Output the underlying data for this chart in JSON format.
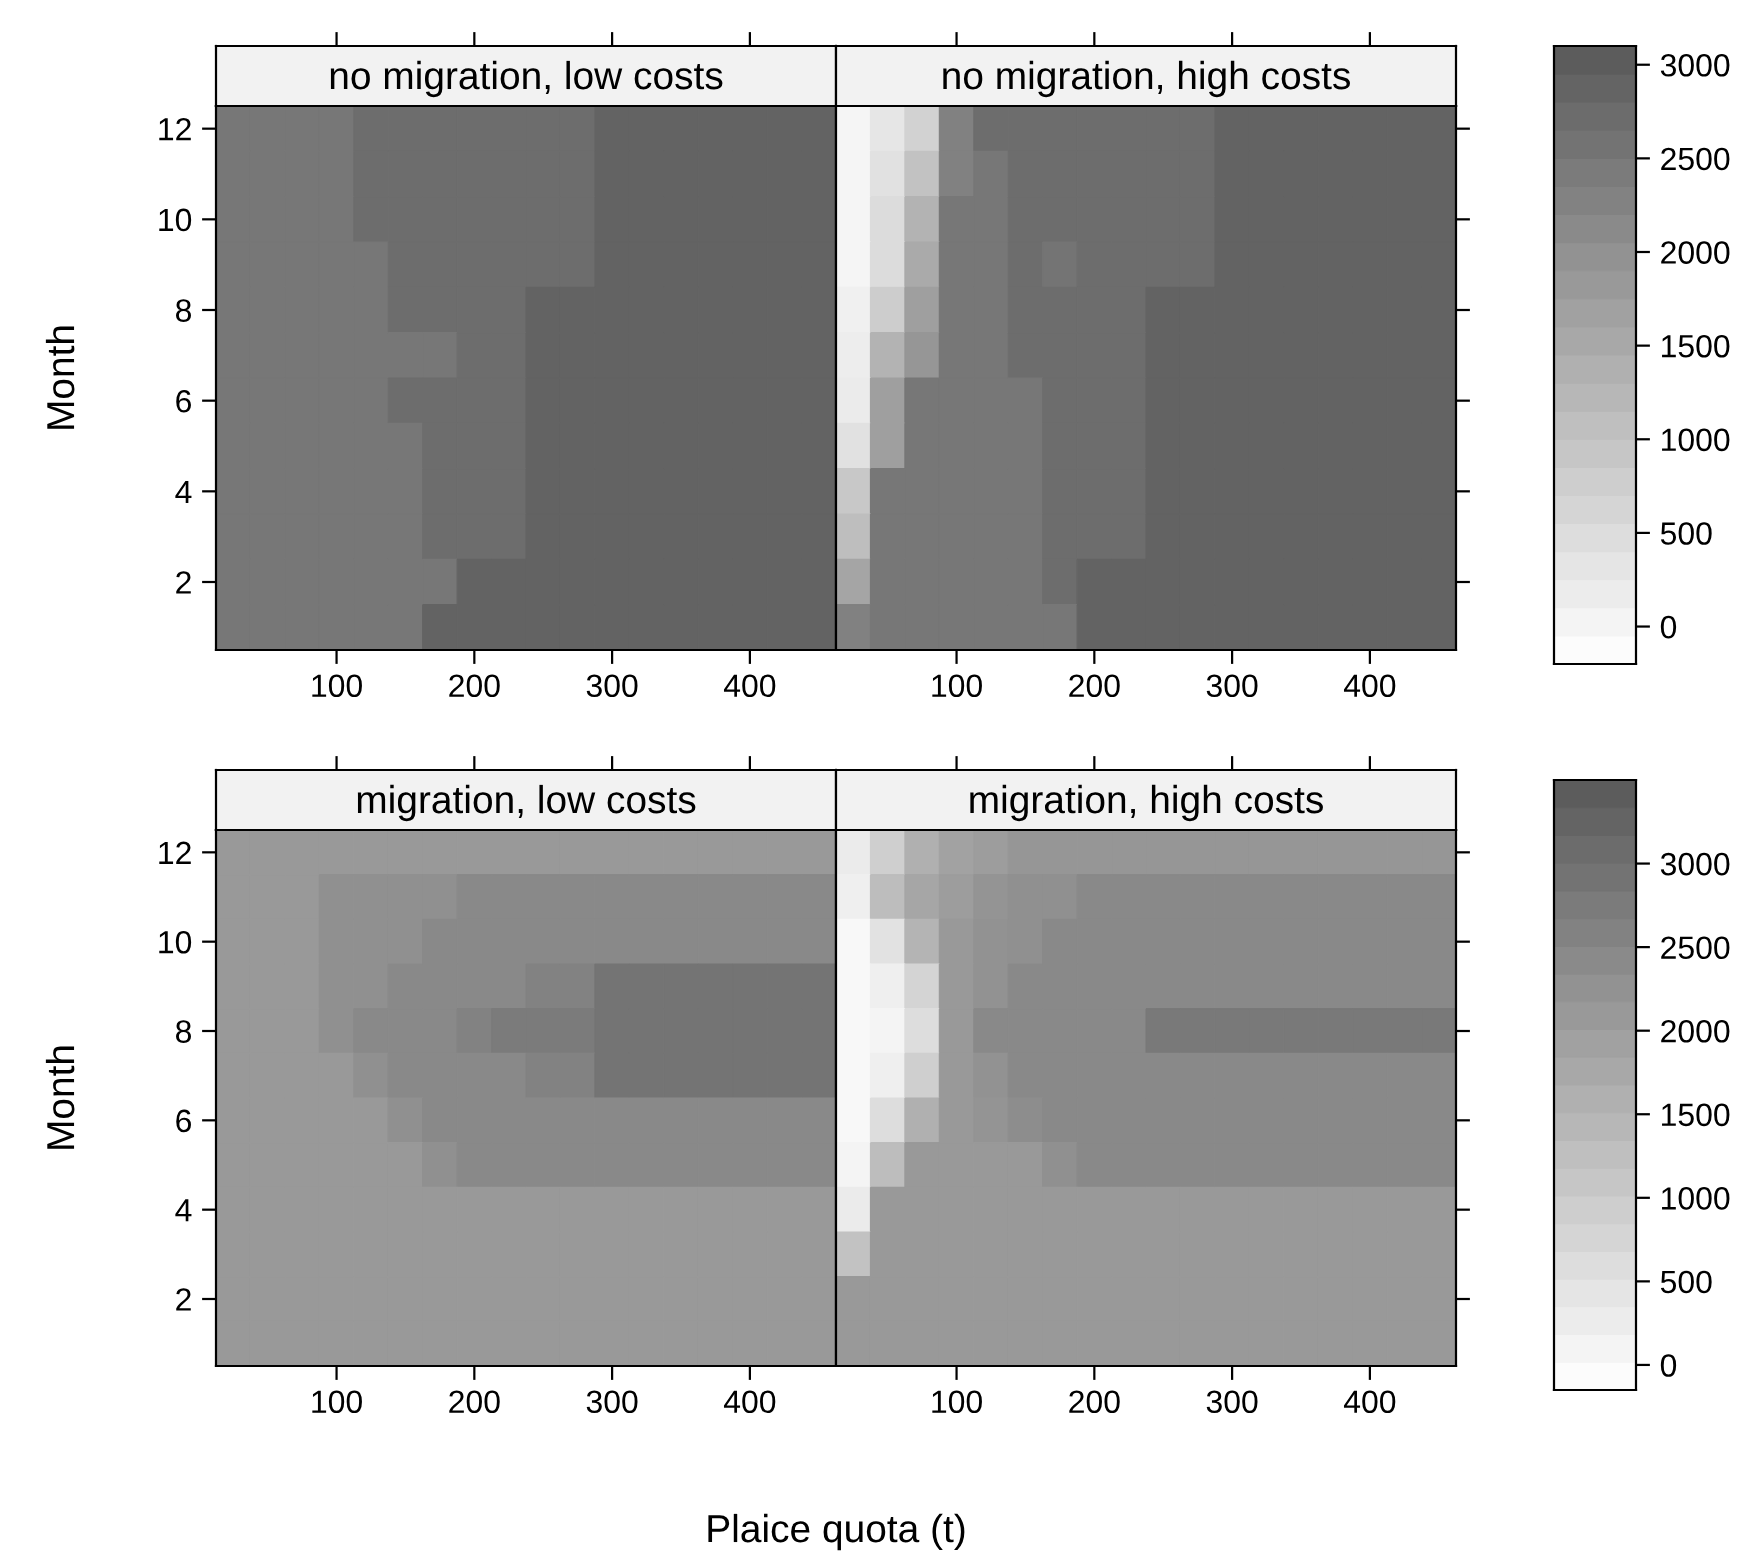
{
  "chart_data": [
    {
      "type": "heatmap",
      "ylabel": "Month",
      "annotations": [
        "no migration, low costs",
        "no migration, high costs"
      ],
      "categories": [
        null,
        null,
        null,
        "100",
        null,
        null,
        null,
        "200",
        null,
        null,
        null,
        "300",
        null,
        null,
        null,
        "400",
        null,
        null,
        null,
        null,
        null,
        "100",
        null,
        null,
        null,
        "200",
        null,
        null,
        null,
        "300",
        null,
        null,
        null,
        "400",
        null,
        null
      ],
      "y_categories": [
        "12",
        null,
        "10",
        null,
        "8",
        null,
        "6",
        null,
        "4",
        null,
        "2",
        null
      ],
      "clim": [
        -200,
        3100
      ],
      "cticks": [
        0,
        500,
        1000,
        1500,
        2000,
        2500,
        3000
      ],
      "cells": [
        [
          2500,
          2500,
          2500,
          2500,
          2700,
          2700,
          2700,
          2700,
          2700,
          2700,
          2700,
          2900,
          2900,
          2900,
          2900,
          2900,
          2900,
          2900,
          0,
          300,
          700,
          2300,
          2700,
          2700,
          2700,
          2700,
          2700,
          2700,
          2700,
          2900,
          2900,
          2900,
          2900,
          2900,
          2900,
          2900
        ],
        [
          2500,
          2500,
          2500,
          2500,
          2700,
          2700,
          2700,
          2700,
          2700,
          2700,
          2700,
          2900,
          2900,
          2900,
          2900,
          2900,
          2900,
          2900,
          0,
          400,
          1000,
          2300,
          2500,
          2700,
          2700,
          2700,
          2700,
          2700,
          2700,
          2900,
          2900,
          2900,
          2900,
          2900,
          2900,
          2900
        ],
        [
          2500,
          2500,
          2500,
          2500,
          2700,
          2700,
          2700,
          2700,
          2700,
          2700,
          2700,
          2900,
          2900,
          2900,
          2900,
          2900,
          2900,
          2900,
          0,
          500,
          1300,
          2500,
          2500,
          2700,
          2700,
          2700,
          2700,
          2700,
          2700,
          2900,
          2900,
          2900,
          2900,
          2900,
          2900,
          2900
        ],
        [
          2500,
          2500,
          2500,
          2500,
          2500,
          2700,
          2700,
          2700,
          2700,
          2700,
          2700,
          2900,
          2900,
          2900,
          2900,
          2900,
          2900,
          2900,
          0,
          500,
          1500,
          2500,
          2500,
          2700,
          2550,
          2700,
          2700,
          2700,
          2700,
          2900,
          2900,
          2900,
          2900,
          2900,
          2900,
          2900
        ],
        [
          2500,
          2500,
          2500,
          2500,
          2500,
          2700,
          2700,
          2700,
          2700,
          2900,
          2900,
          2900,
          2900,
          2900,
          2900,
          2900,
          2900,
          2900,
          100,
          800,
          1700,
          2500,
          2500,
          2700,
          2700,
          2700,
          2700,
          2900,
          2900,
          2900,
          2900,
          2900,
          2900,
          2900,
          2900,
          2900
        ],
        [
          2500,
          2500,
          2500,
          2500,
          2500,
          2500,
          2500,
          2700,
          2700,
          2900,
          2900,
          2900,
          2900,
          2900,
          2900,
          2900,
          2900,
          2900,
          150,
          1300,
          1900,
          2500,
          2500,
          2700,
          2700,
          2700,
          2700,
          2900,
          2900,
          2900,
          2900,
          2900,
          2900,
          2900,
          2900,
          2900
        ],
        [
          2500,
          2500,
          2500,
          2500,
          2500,
          2700,
          2700,
          2700,
          2700,
          2900,
          2900,
          2900,
          2900,
          2900,
          2900,
          2900,
          2900,
          2900,
          200,
          1700,
          2500,
          2500,
          2500,
          2500,
          2700,
          2700,
          2700,
          2900,
          2900,
          2900,
          2900,
          2900,
          2900,
          2900,
          2900,
          2900
        ],
        [
          2500,
          2500,
          2500,
          2500,
          2500,
          2500,
          2700,
          2700,
          2700,
          2900,
          2900,
          2900,
          2900,
          2900,
          2900,
          2900,
          2900,
          2900,
          400,
          1700,
          2500,
          2500,
          2500,
          2500,
          2700,
          2700,
          2700,
          2900,
          2900,
          2900,
          2900,
          2900,
          2900,
          2900,
          2900,
          2900
        ],
        [
          2500,
          2500,
          2500,
          2500,
          2500,
          2500,
          2700,
          2700,
          2700,
          2900,
          2900,
          2900,
          2900,
          2900,
          2900,
          2900,
          2900,
          2900,
          900,
          2500,
          2500,
          2500,
          2500,
          2500,
          2700,
          2700,
          2700,
          2900,
          2900,
          2900,
          2900,
          2900,
          2900,
          2900,
          2900,
          2900
        ],
        [
          2500,
          2500,
          2500,
          2500,
          2500,
          2500,
          2700,
          2700,
          2700,
          2900,
          2900,
          2900,
          2900,
          2900,
          2900,
          2900,
          2900,
          2900,
          1100,
          2500,
          2500,
          2500,
          2500,
          2500,
          2700,
          2700,
          2700,
          2900,
          2900,
          2900,
          2900,
          2900,
          2900,
          2900,
          2900,
          2900
        ],
        [
          2500,
          2500,
          2500,
          2500,
          2500,
          2500,
          2500,
          2900,
          2900,
          2900,
          2900,
          2900,
          2900,
          2900,
          2900,
          2900,
          2900,
          2900,
          1600,
          2500,
          2500,
          2500,
          2500,
          2500,
          2700,
          2900,
          2900,
          2900,
          2900,
          2900,
          2900,
          2900,
          2900,
          2900,
          2900,
          2900
        ],
        [
          2500,
          2500,
          2500,
          2500,
          2500,
          2500,
          2900,
          2900,
          2900,
          2900,
          2900,
          2900,
          2900,
          2900,
          2900,
          2900,
          2900,
          2900,
          2300,
          2500,
          2500,
          2500,
          2500,
          2500,
          2500,
          2900,
          2900,
          2900,
          2900,
          2900,
          2900,
          2900,
          2900,
          2900,
          2900,
          2900
        ]
      ]
    },
    {
      "type": "heatmap",
      "ylabel": "Month",
      "xlabel": "Plaice quota (t)",
      "annotations": [
        "migration, low costs",
        "migration, high costs"
      ],
      "categories": [
        null,
        null,
        null,
        "100",
        null,
        null,
        null,
        "200",
        null,
        null,
        null,
        "300",
        null,
        null,
        null,
        "400",
        null,
        null,
        null,
        null,
        null,
        "100",
        null,
        null,
        null,
        "200",
        null,
        null,
        null,
        "300",
        null,
        null,
        null,
        "400",
        null,
        null
      ],
      "y_categories": [
        "12",
        null,
        "10",
        null,
        "8",
        null,
        "6",
        null,
        "4",
        null,
        "2",
        null
      ],
      "clim": [
        -150,
        3500
      ],
      "cticks": [
        0,
        500,
        1000,
        1500,
        2000,
        2500,
        3000
      ],
      "cells": [
        [
          2100,
          2100,
          2100,
          2100,
          2100,
          2100,
          2100,
          2100,
          2100,
          2100,
          2100,
          2100,
          2100,
          2100,
          2100,
          2100,
          2100,
          2100,
          300,
          900,
          1600,
          1900,
          2000,
          2150,
          2150,
          2150,
          2150,
          2150,
          2150,
          2150,
          2150,
          2150,
          2150,
          2150,
          2150,
          2150
        ],
        [
          2100,
          2100,
          2100,
          2300,
          2300,
          2300,
          2300,
          2450,
          2450,
          2450,
          2450,
          2450,
          2450,
          2450,
          2450,
          2450,
          2450,
          2450,
          200,
          1300,
          1800,
          2000,
          2200,
          2300,
          2300,
          2450,
          2450,
          2450,
          2450,
          2450,
          2450,
          2450,
          2450,
          2450,
          2450,
          2450
        ],
        [
          2100,
          2100,
          2100,
          2300,
          2300,
          2300,
          2450,
          2450,
          2450,
          2450,
          2450,
          2450,
          2450,
          2450,
          2450,
          2450,
          2450,
          2450,
          0,
          500,
          1500,
          2100,
          2250,
          2300,
          2450,
          2450,
          2450,
          2450,
          2450,
          2450,
          2450,
          2450,
          2450,
          2450,
          2450,
          2450
        ],
        [
          2100,
          2100,
          2100,
          2300,
          2300,
          2450,
          2450,
          2450,
          2450,
          2600,
          2600,
          2900,
          2900,
          2900,
          2900,
          2900,
          2900,
          2900,
          0,
          200,
          800,
          2100,
          2250,
          2450,
          2450,
          2450,
          2450,
          2450,
          2450,
          2450,
          2450,
          2450,
          2450,
          2450,
          2450,
          2450
        ],
        [
          2100,
          2100,
          2100,
          2300,
          2450,
          2450,
          2450,
          2600,
          2750,
          2750,
          2750,
          2900,
          2900,
          2900,
          2900,
          2900,
          2900,
          2900,
          0,
          100,
          600,
          2100,
          2450,
          2450,
          2450,
          2450,
          2450,
          2800,
          2800,
          2800,
          2800,
          2800,
          2800,
          2800,
          2800,
          2800
        ],
        [
          2100,
          2100,
          2100,
          2100,
          2300,
          2450,
          2450,
          2450,
          2450,
          2600,
          2600,
          2900,
          2900,
          2900,
          2900,
          2900,
          2900,
          2900,
          0,
          200,
          900,
          2100,
          2250,
          2450,
          2450,
          2450,
          2450,
          2450,
          2450,
          2450,
          2450,
          2450,
          2450,
          2450,
          2450,
          2450
        ],
        [
          2100,
          2100,
          2100,
          2100,
          2100,
          2300,
          2450,
          2450,
          2450,
          2450,
          2450,
          2450,
          2450,
          2450,
          2450,
          2450,
          2450,
          2450,
          0,
          600,
          1600,
          2100,
          2200,
          2350,
          2450,
          2450,
          2450,
          2450,
          2450,
          2450,
          2450,
          2450,
          2450,
          2450,
          2450,
          2450
        ],
        [
          2100,
          2100,
          2100,
          2100,
          2100,
          2100,
          2300,
          2450,
          2450,
          2450,
          2450,
          2450,
          2450,
          2450,
          2450,
          2450,
          2450,
          2450,
          100,
          1300,
          2100,
          2100,
          2100,
          2100,
          2300,
          2450,
          2450,
          2450,
          2450,
          2450,
          2450,
          2450,
          2450,
          2450,
          2450,
          2450
        ],
        [
          2100,
          2100,
          2100,
          2100,
          2100,
          2100,
          2100,
          2100,
          2100,
          2100,
          2100,
          2100,
          2100,
          2100,
          2100,
          2100,
          2100,
          2100,
          300,
          2100,
          2100,
          2100,
          2100,
          2100,
          2100,
          2100,
          2100,
          2100,
          2100,
          2100,
          2100,
          2100,
          2100,
          2100,
          2100,
          2100
        ],
        [
          2100,
          2100,
          2100,
          2100,
          2100,
          2100,
          2100,
          2100,
          2100,
          2100,
          2100,
          2100,
          2100,
          2100,
          2100,
          2100,
          2100,
          2100,
          1200,
          2100,
          2100,
          2100,
          2100,
          2100,
          2100,
          2100,
          2100,
          2100,
          2100,
          2100,
          2100,
          2100,
          2100,
          2100,
          2100,
          2100
        ],
        [
          2100,
          2100,
          2100,
          2100,
          2100,
          2100,
          2100,
          2100,
          2100,
          2100,
          2100,
          2100,
          2100,
          2100,
          2100,
          2100,
          2100,
          2100,
          2100,
          2100,
          2100,
          2100,
          2100,
          2100,
          2100,
          2100,
          2100,
          2100,
          2100,
          2100,
          2100,
          2100,
          2100,
          2100,
          2100,
          2100
        ],
        [
          2100,
          2100,
          2100,
          2100,
          2100,
          2100,
          2100,
          2100,
          2100,
          2100,
          2100,
          2100,
          2100,
          2100,
          2100,
          2100,
          2100,
          2100,
          2100,
          2100,
          2100,
          2100,
          2100,
          2100,
          2100,
          2100,
          2100,
          2100,
          2100,
          2100,
          2100,
          2100,
          2100,
          2100,
          2100,
          2100
        ]
      ]
    }
  ]
}
